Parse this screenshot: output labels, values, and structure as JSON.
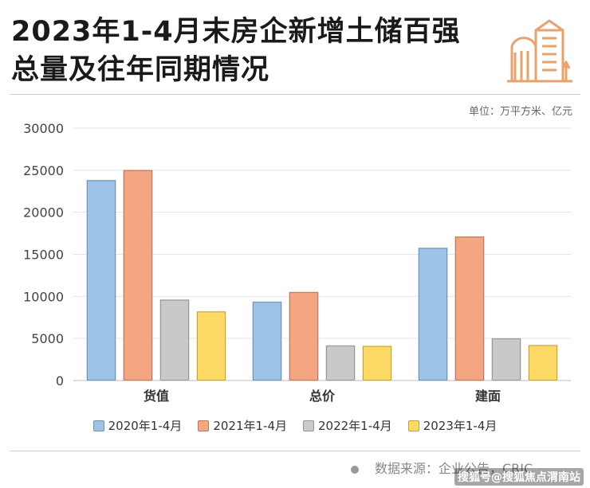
{
  "header": {
    "title_line1": "2023年1-4月末房企新增土储百强",
    "title_line2": "总量及往年同期情况",
    "unit": "单位：万平方米、亿元",
    "icon": "building-icon",
    "icon_color": "#e8a26a"
  },
  "chart_data": {
    "type": "bar",
    "categories": [
      "货值",
      "总价",
      "建面"
    ],
    "series": [
      {
        "name": "2020年1-4月",
        "values": [
          23800,
          9350,
          15750
        ],
        "color": "#9dc3e6"
      },
      {
        "name": "2021年1-4月",
        "values": [
          25000,
          10500,
          17100
        ],
        "color": "#f4a582"
      },
      {
        "name": "2022年1-4月",
        "values": [
          9600,
          4150,
          5000
        ],
        "color": "#c9c9c9"
      },
      {
        "name": "2023年1-4月",
        "values": [
          8200,
          4100,
          4200
        ],
        "color": "#ffd966"
      }
    ],
    "yticks": [
      0,
      5000,
      10000,
      15000,
      20000,
      25000,
      30000
    ],
    "ylim": [
      0,
      30000
    ],
    "grid": true,
    "legend": "bottom"
  },
  "footer": {
    "source": "数据来源：企业公告，CRIC",
    "watermark": "搜狐号@搜狐焦点渭南站"
  }
}
